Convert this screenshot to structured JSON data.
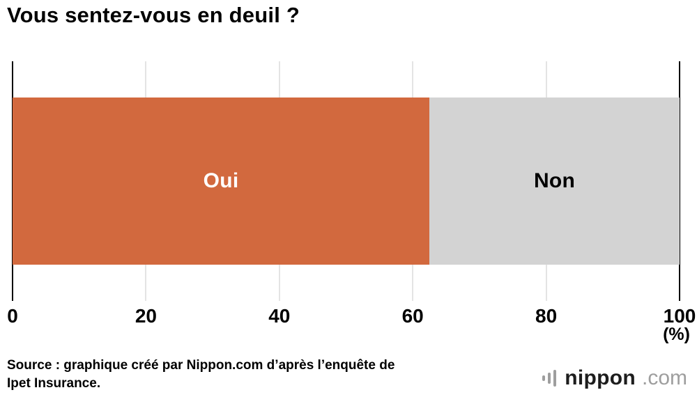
{
  "chart_data": {
    "type": "bar",
    "orientation": "horizontal_stacked",
    "title": "Vous sentez-vous en deuil ?",
    "categories": [
      "Oui",
      "Non"
    ],
    "series": [
      {
        "name": "Oui",
        "value": 62.5,
        "color": "#d2693e",
        "label_color": "#ffffff"
      },
      {
        "name": "Non",
        "value": 37.5,
        "color": "#d3d3d3",
        "label_color": "#000000"
      }
    ],
    "xlim": [
      0,
      100
    ],
    "x_ticks": [
      0,
      20,
      40,
      60,
      80,
      100
    ],
    "x_unit": "(%)",
    "grid": true,
    "gridline_color": "#c9c9c9",
    "axis_edge_color": "#000000",
    "legend_position": "none"
  },
  "footer": {
    "source_line1": "Source : graphique créé par Nippon.com d’après l’enquête de",
    "source_line2": "Ipet Insurance.",
    "logo_icon": "signal-bars-icon",
    "logo_text": "nippon",
    "logo_suffix": ".com"
  }
}
